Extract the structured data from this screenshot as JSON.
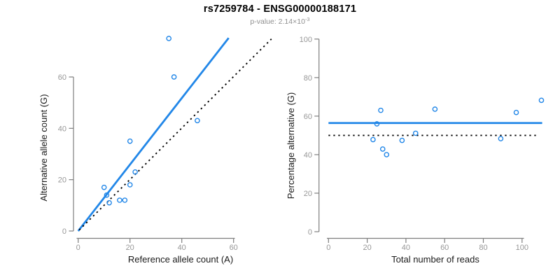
{
  "header": {
    "title": "rs7259784 - ENSG00000188171",
    "pvalue_base": "p-value: 2.14×10",
    "pvalue_exp": "-3"
  },
  "colors": {
    "point_blue": "#2287e8",
    "line_blue": "#2287e8",
    "dotted_black": "#000000",
    "axis_gray": "#7e7e7e",
    "tick_label_gray": "#979797"
  },
  "chart_data": [
    {
      "type": "scatter",
      "title": "",
      "xlabel": "Reference allele count (A)",
      "ylabel": "Alternative allele count (G)",
      "xlim": [
        0,
        75
      ],
      "ylim": [
        0,
        75
      ],
      "xticks": [
        0,
        20,
        40,
        60
      ],
      "yticks": [
        0,
        20,
        40,
        60
      ],
      "grid": false,
      "points": [
        [
          10,
          17
        ],
        [
          11,
          14
        ],
        [
          12,
          11
        ],
        [
          16,
          12
        ],
        [
          18,
          12
        ],
        [
          20,
          18
        ],
        [
          22,
          23
        ],
        [
          20,
          35
        ],
        [
          35,
          75
        ],
        [
          37,
          60
        ],
        [
          46,
          43
        ]
      ],
      "lines": [
        {
          "name": "regression-line",
          "style": "solid",
          "color": "#2287e8",
          "from": [
            0,
            0
          ],
          "to": [
            58.1,
            75.2
          ]
        },
        {
          "name": "identity-line",
          "style": "dotted",
          "color": "#000000",
          "from": [
            0.4,
            0.4
          ],
          "to": [
            74.6,
            74.8
          ]
        }
      ]
    },
    {
      "type": "scatter",
      "title": "",
      "xlabel": "Total number of reads",
      "ylabel": "Percentage alternative (G)",
      "xlim": [
        0,
        110.5
      ],
      "ylim": [
        0,
        100
      ],
      "xticks": [
        0,
        20,
        40,
        60,
        80,
        100
      ],
      "yticks": [
        0,
        20,
        40,
        60,
        80,
        100
      ],
      "grid": false,
      "points": [
        [
          27,
          63.0
        ],
        [
          25,
          56.0
        ],
        [
          23,
          47.8
        ],
        [
          28,
          42.9
        ],
        [
          30,
          40.0
        ],
        [
          38,
          47.4
        ],
        [
          45,
          51.1
        ],
        [
          55,
          63.6
        ],
        [
          89,
          48.3
        ],
        [
          97,
          61.9
        ],
        [
          110,
          68.2
        ]
      ],
      "lines": [
        {
          "name": "weighted-mean-line",
          "style": "solid",
          "color": "#2287e8",
          "from": [
            0,
            56.4
          ],
          "to": [
            110.4,
            56.4
          ]
        },
        {
          "name": "null-50-line",
          "style": "dotted",
          "color": "#000000",
          "from": [
            0,
            50
          ],
          "to": [
            108.2,
            50
          ]
        }
      ]
    }
  ]
}
